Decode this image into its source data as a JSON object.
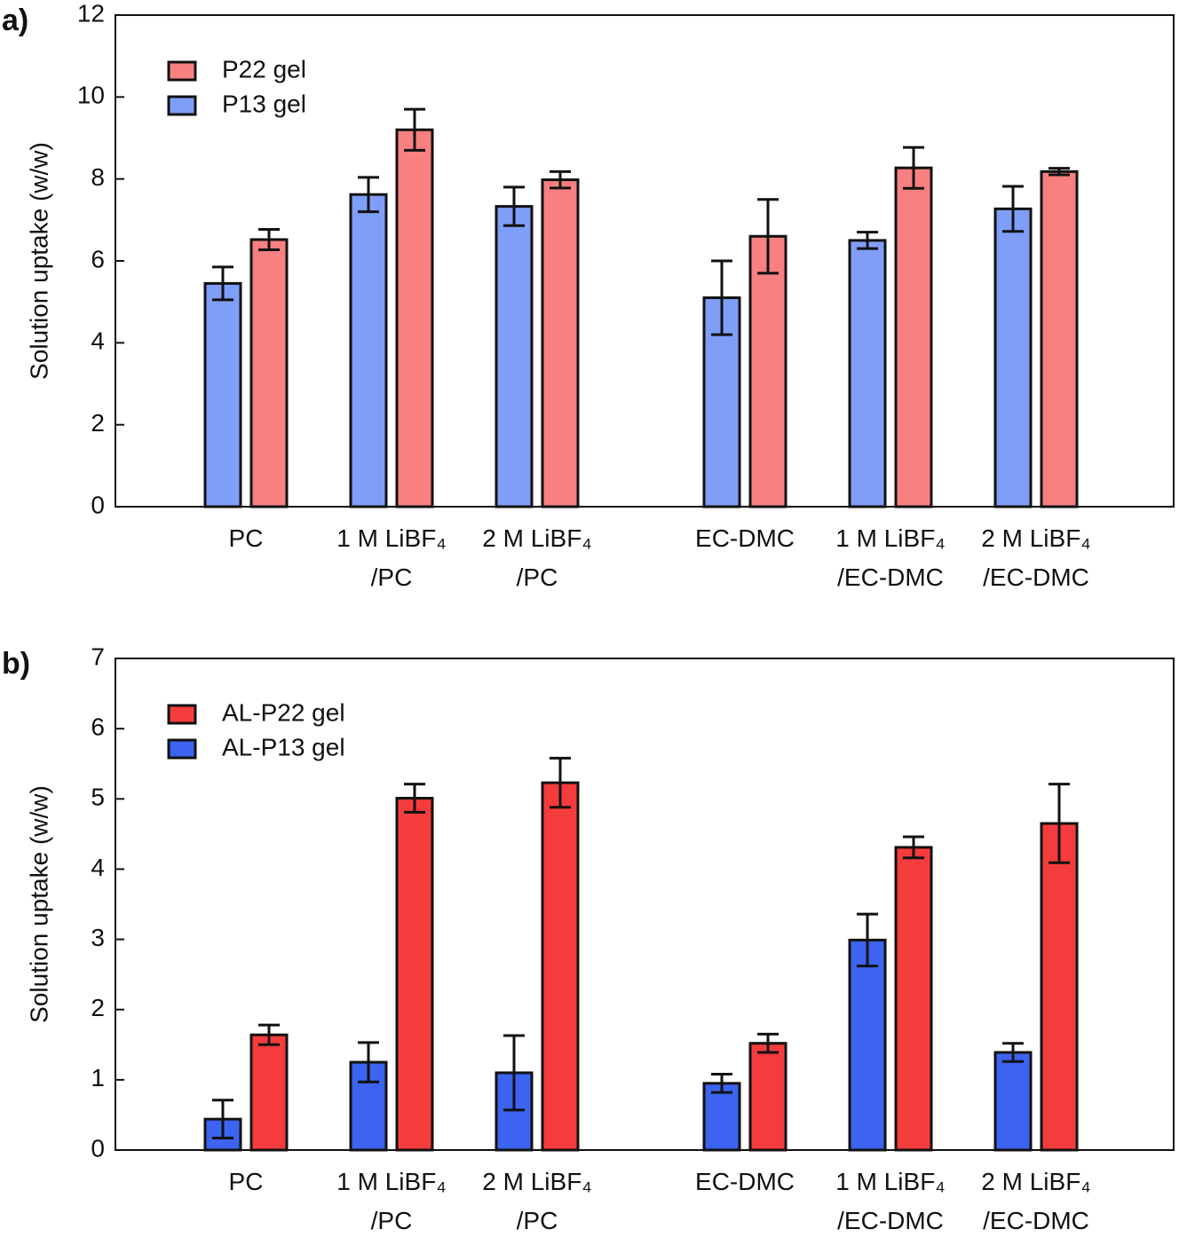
{
  "chart_data": [
    {
      "type": "bar",
      "label": "a)",
      "y_label": "Solution uptake (w/w)",
      "categories": [
        "PC",
        "1 M LiBF₄\n/PC",
        "2 M LiBF₄\n/PC",
        "EC-DMC",
        "1 M LiBF₄\n/EC-DMC",
        "2 M LiBF₄\n/EC-DMC"
      ],
      "series": [
        {
          "name": "P22 gel",
          "color": "#f98080",
          "values": [
            6.52,
            9.2,
            7.98,
            6.6,
            8.27,
            8.18
          ],
          "errors": [
            0.25,
            0.5,
            0.2,
            0.9,
            0.5,
            0.08
          ]
        },
        {
          "name": "P13 gel",
          "color": "#7f9ef8",
          "values": [
            5.45,
            7.62,
            7.33,
            5.1,
            6.5,
            7.27
          ],
          "errors": [
            0.4,
            0.42,
            0.47,
            0.9,
            0.2,
            0.55
          ]
        }
      ],
      "ylim": [
        0,
        12
      ],
      "yticks": [
        0,
        2,
        4,
        6,
        8,
        10,
        12
      ],
      "legend": "upper left"
    },
    {
      "type": "bar",
      "label": "b)",
      "y_label": "Solution uptake (w/w)",
      "categories": [
        "PC",
        "1 M LiBF₄\n/PC",
        "2 M LiBF₄\n/PC",
        "EC-DMC",
        "1 M LiBF₄\n/EC-DMC",
        "2 M LiBF₄\n/EC-DMC"
      ],
      "series": [
        {
          "name": "AL-P22 gel",
          "color": "#f53c3c",
          "values": [
            1.64,
            5.01,
            5.23,
            1.52,
            4.31,
            4.65
          ],
          "errors": [
            0.14,
            0.2,
            0.35,
            0.13,
            0.15,
            0.56
          ]
        },
        {
          "name": "AL-P13 gel",
          "color": "#3c64f0",
          "values": [
            0.44,
            1.25,
            1.1,
            0.95,
            2.99,
            1.39
          ],
          "errors": [
            0.27,
            0.28,
            0.53,
            0.13,
            0.37,
            0.13
          ]
        }
      ],
      "ylim": [
        0,
        7
      ],
      "yticks": [
        0,
        1,
        2,
        3,
        4,
        5,
        6,
        7
      ],
      "legend": "upper left"
    }
  ]
}
